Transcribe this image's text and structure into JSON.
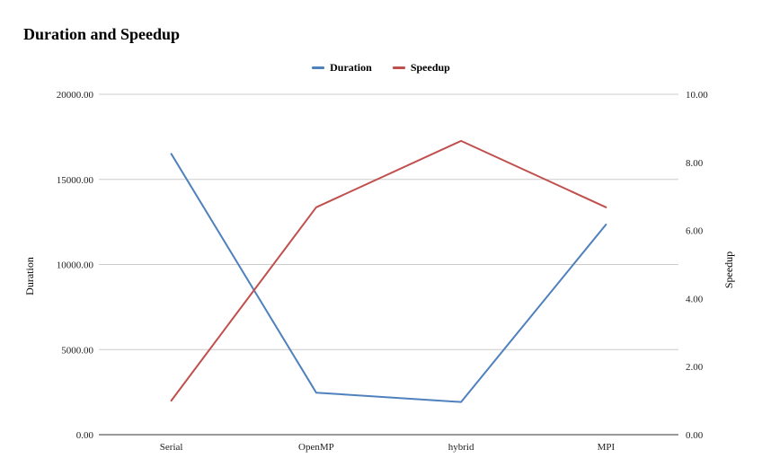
{
  "chart_data": {
    "type": "line",
    "title": "Duration and Speedup",
    "categories": [
      "Serial",
      "OpenMP",
      "hybrid",
      "MPI"
    ],
    "series": [
      {
        "name": "Duration",
        "axis": "left",
        "color": "#4f81bd",
        "values": [
          16500,
          2470,
          1920,
          12350
        ]
      },
      {
        "name": "Speedup",
        "axis": "right",
        "color": "#c0504d",
        "values": [
          1.0,
          6.68,
          8.63,
          6.68
        ]
      }
    ],
    "ylabel_left": "Duration",
    "ylabel_right": "Speedup",
    "ylim_left": [
      0,
      20000
    ],
    "ylim_right": [
      0,
      10
    ],
    "yticks_left": [
      "0.00",
      "5000.00",
      "10000.00",
      "15000.00",
      "20000.00"
    ],
    "yticks_right": [
      "0.00",
      "2.00",
      "4.00",
      "6.00",
      "8.00",
      "10.00"
    ],
    "grid": true,
    "legend_position": "top-center"
  }
}
